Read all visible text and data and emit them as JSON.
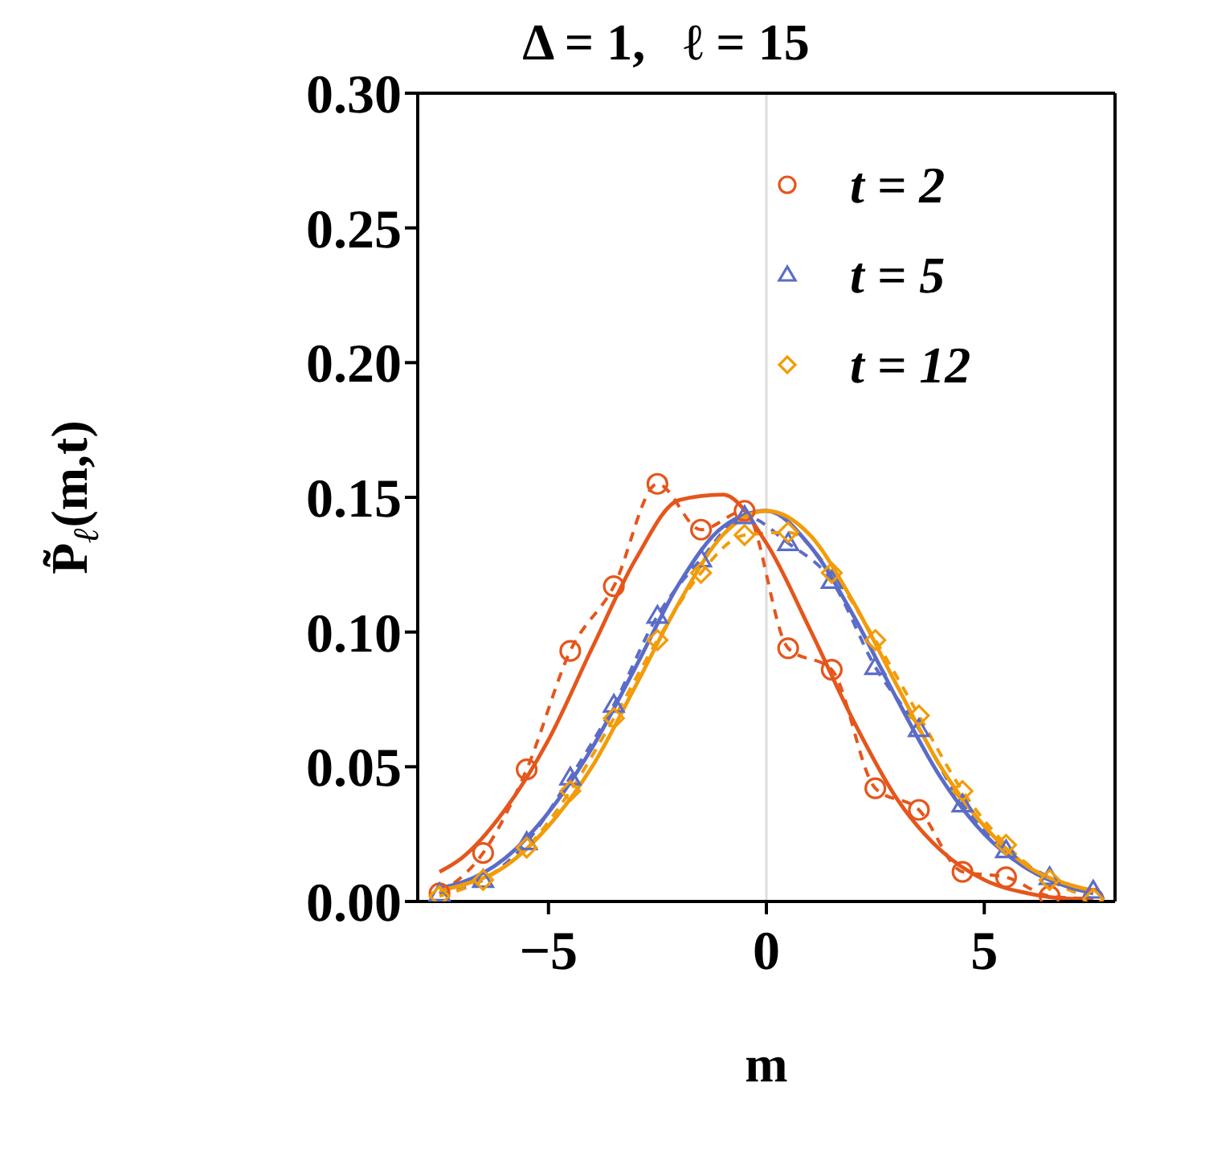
{
  "chart_data": {
    "type": "line",
    "title": "Δ = 1,   ℓ = 15",
    "xlabel": "m",
    "ylabel": "P̃$_{ℓ}$(m,t)",
    "xlim": [
      -8,
      8
    ],
    "xticks": [
      {
        "value": -5,
        "label": "−5"
      },
      0,
      5
    ],
    "ylim": [
      0,
      0.3
    ],
    "yticks": [
      {
        "value": 0,
        "label": "0.00"
      },
      {
        "value": 0.05,
        "label": "0.05"
      },
      {
        "value": 0.1,
        "label": "0.10"
      },
      {
        "value": 0.15,
        "label": "0.15"
      },
      {
        "value": 0.2,
        "label": "0.20"
      },
      {
        "value": 0.25,
        "label": "0.25"
      },
      {
        "value": 0.3,
        "label": "0.30"
      }
    ],
    "legend": "top right",
    "ref_lines": [
      {
        "axis": "x",
        "value": 0,
        "label": null,
        "color": "#dddddd"
      }
    ],
    "series": [
      {
        "name": "t = 2",
        "color": "#e5561c",
        "marker": "circle",
        "line_style": "dashed",
        "x": [
          -7.5,
          -6.5,
          -5.5,
          -4.5,
          -3.5,
          -2.5,
          -1.5,
          -0.5,
          0.5,
          1.5,
          2.5,
          3.5,
          4.5,
          5.5,
          6.5,
          7.5
        ],
        "values": [
          0.003,
          0.018,
          0.049,
          0.093,
          0.117,
          0.155,
          0.138,
          0.145,
          0.094,
          0.086,
          0.042,
          0.034,
          0.011,
          0.009,
          0.002,
          0.001
        ]
      },
      {
        "name": "t = 5",
        "color": "#5b6cc8",
        "marker": "triangle",
        "line_style": "dashed",
        "x": [
          -7.5,
          -6.5,
          -5.5,
          -4.5,
          -3.5,
          -2.5,
          -1.5,
          -0.5,
          0.5,
          1.5,
          2.5,
          3.5,
          4.5,
          5.5,
          6.5,
          7.5
        ],
        "values": [
          0.003,
          0.008,
          0.022,
          0.046,
          0.073,
          0.106,
          0.127,
          0.143,
          0.133,
          0.119,
          0.087,
          0.064,
          0.036,
          0.019,
          0.009,
          0.004
        ]
      },
      {
        "name": "t = 12",
        "color": "#f29c0a",
        "marker": "diamond",
        "line_style": "dashed",
        "x": [
          -7.5,
          -6.5,
          -5.5,
          -4.5,
          -3.5,
          -2.5,
          -1.5,
          -0.5,
          0.5,
          1.5,
          2.5,
          3.5,
          4.5,
          5.5,
          6.5,
          7.5
        ],
        "values": [
          0.002,
          0.008,
          0.02,
          0.041,
          0.068,
          0.097,
          0.122,
          0.136,
          0.137,
          0.122,
          0.097,
          0.069,
          0.041,
          0.021,
          0.008,
          0.001
        ]
      },
      {
        "color": "#e5561c",
        "marker": "none",
        "line_style": "solid",
        "x": [
          -7.5,
          -7,
          -6,
          -5,
          -4,
          -3,
          -2,
          -1,
          0,
          1,
          2,
          3,
          4,
          5,
          6,
          7,
          7.5
        ],
        "values": [
          0.011,
          0.016,
          0.034,
          0.06,
          0.094,
          0.127,
          0.149,
          0.151,
          0.133,
          0.101,
          0.067,
          0.038,
          0.019,
          0.008,
          0.003,
          0.001,
          0.001
        ]
      },
      {
        "color": "#5b6cc8",
        "marker": "none",
        "line_style": "solid",
        "x": [
          -7.5,
          -7,
          -6,
          -5,
          -4,
          -3,
          -2,
          -1,
          0,
          1,
          2,
          3,
          4,
          5,
          6,
          7,
          7.5
        ],
        "values": [
          0.005,
          0.007,
          0.016,
          0.033,
          0.057,
          0.087,
          0.118,
          0.139,
          0.145,
          0.132,
          0.106,
          0.075,
          0.046,
          0.025,
          0.012,
          0.005,
          0.003
        ]
      },
      {
        "color": "#f29c0a",
        "marker": "none",
        "line_style": "solid",
        "x": [
          -7.5,
          -7,
          -6,
          -5,
          -4,
          -3,
          -2,
          -1,
          0,
          1,
          2,
          3,
          4,
          5,
          6,
          7,
          7.5
        ],
        "values": [
          0.004,
          0.006,
          0.013,
          0.028,
          0.05,
          0.08,
          0.111,
          0.136,
          0.145,
          0.136,
          0.111,
          0.08,
          0.05,
          0.028,
          0.013,
          0.006,
          0.004
        ]
      }
    ]
  }
}
